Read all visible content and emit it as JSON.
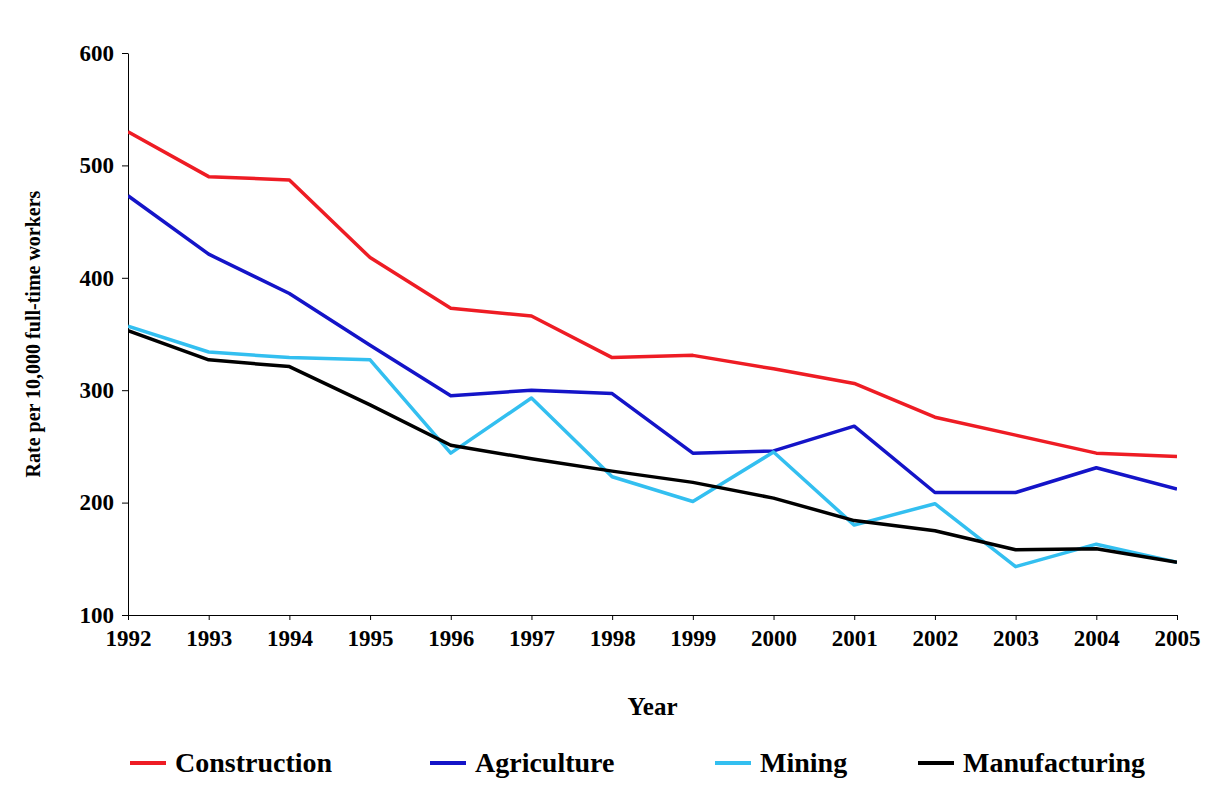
{
  "chart_data": {
    "type": "line",
    "x_label": "Year",
    "y_label": "Rate per 10,000 full-time workers",
    "x": [
      1992,
      1993,
      1994,
      1995,
      1996,
      1997,
      1998,
      1999,
      2000,
      2001,
      2002,
      2003,
      2004,
      2005
    ],
    "series": [
      {
        "name": "Construction",
        "color": "#ee1c24",
        "values": [
          530,
          490,
          487,
          418,
          373,
          366,
          329,
          331,
          319,
          306,
          276,
          260,
          244,
          241
        ]
      },
      {
        "name": "Agriculture",
        "color": "#1414c8",
        "values": [
          473,
          421,
          386,
          340,
          295,
          300,
          297,
          244,
          246,
          268,
          209,
          209,
          231,
          212
        ]
      },
      {
        "name": "Mining",
        "color": "#33bff0",
        "values": [
          357,
          334,
          329,
          327,
          244,
          293,
          223,
          201,
          245,
          180,
          199,
          143,
          163,
          147
        ]
      },
      {
        "name": "Manufacturing",
        "color": "#000000",
        "values": [
          353,
          327,
          321,
          287,
          251,
          239,
          228,
          218,
          204,
          184,
          175,
          158,
          159,
          147
        ]
      }
    ],
    "xlim": [
      1992,
      2005
    ],
    "xticks": [
      1992,
      1993,
      1994,
      1995,
      1996,
      1997,
      1998,
      1999,
      2000,
      2001,
      2002,
      2003,
      2004,
      2005
    ],
    "ylim": [
      100,
      600
    ],
    "yticks": [
      100,
      200,
      300,
      400,
      500,
      600
    ],
    "grid": false,
    "legend": "bottom"
  }
}
